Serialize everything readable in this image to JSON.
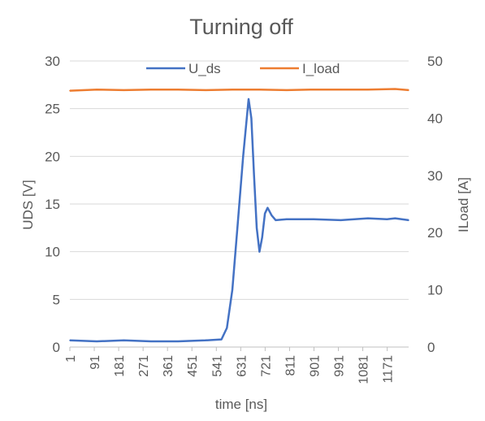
{
  "chart_data": {
    "type": "line",
    "title": "Turning off",
    "xlabel": "time [ns]",
    "ylabel_left": "UDS [V]",
    "ylabel_right": "ILoad [A]",
    "x_tick_labels": [
      "1",
      "91",
      "181",
      "271",
      "361",
      "451",
      "541",
      "631",
      "721",
      "811",
      "901",
      "991",
      "1081",
      "1171"
    ],
    "x_range": [
      1,
      1250
    ],
    "y_left_range": [
      0,
      30
    ],
    "y_left_ticks": [
      "0",
      "5",
      "10",
      "15",
      "20",
      "25",
      "30"
    ],
    "y_right_range": [
      0,
      50
    ],
    "y_right_ticks": [
      "0",
      "10",
      "20",
      "30",
      "40",
      "50"
    ],
    "legend_position": "top",
    "grid": "horizontal",
    "series": [
      {
        "name": "U_ds",
        "color": "#4472C4",
        "axis": "left",
        "x": [
          1,
          100,
          200,
          300,
          400,
          500,
          560,
          580,
          600,
          620,
          640,
          660,
          670,
          680,
          690,
          700,
          710,
          720,
          730,
          745,
          760,
          800,
          900,
          1000,
          1100,
          1170,
          1200,
          1250
        ],
        "y": [
          0.7,
          0.6,
          0.7,
          0.6,
          0.6,
          0.7,
          0.8,
          2.0,
          6.0,
          13.0,
          20.0,
          26.0,
          24.0,
          18.0,
          12.5,
          10.0,
          11.5,
          14.0,
          14.6,
          13.8,
          13.3,
          13.4,
          13.4,
          13.3,
          13.5,
          13.4,
          13.5,
          13.3
        ]
      },
      {
        "name": "I_load",
        "color": "#ED7D31",
        "axis": "right",
        "x": [
          1,
          100,
          200,
          300,
          400,
          500,
          600,
          700,
          800,
          900,
          1000,
          1100,
          1200,
          1250
        ],
        "y": [
          44.8,
          45.0,
          44.9,
          45.0,
          45.0,
          44.9,
          45.0,
          45.0,
          44.9,
          45.0,
          45.0,
          45.0,
          45.1,
          44.9
        ]
      }
    ]
  }
}
